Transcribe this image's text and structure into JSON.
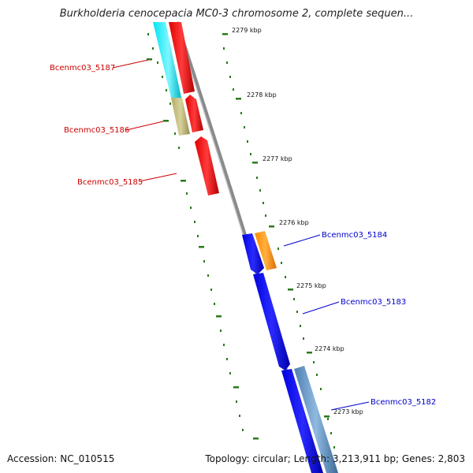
{
  "title": "Burkholderia cenocepacia MC0-3 chromosome 2, complete sequen...",
  "footer": {
    "accession": "Accession: NC_010515",
    "summary": "Topology: circular; Length: 3,213,911 bp; Genes: 2,803"
  },
  "colors": {
    "backbone": "#8a8a8a",
    "tick": "#2a7a1a",
    "forward_label": "#cc0000",
    "reverse_label": "#0000cc"
  },
  "kbp_markers": [
    {
      "label": "2279 kbp"
    },
    {
      "label": "2278 kbp"
    },
    {
      "label": "2277 kbp"
    },
    {
      "label": "2276 kbp"
    },
    {
      "label": "2275 kbp"
    },
    {
      "label": "2274 kbp"
    },
    {
      "label": "2273 kbp"
    }
  ],
  "gene_labels": [
    {
      "name": "Bcenmc03_5187",
      "color": "#cc0000"
    },
    {
      "name": "Bcenmc03_5186",
      "color": "#cc0000"
    },
    {
      "name": "Bcenmc03_5185",
      "color": "#cc0000"
    },
    {
      "name": "Bcenmc03_5184",
      "color": "#0000cc"
    },
    {
      "name": "Bcenmc03_5183",
      "color": "#0000cc"
    },
    {
      "name": "Bcenmc03_5182",
      "color": "#0000cc"
    }
  ]
}
